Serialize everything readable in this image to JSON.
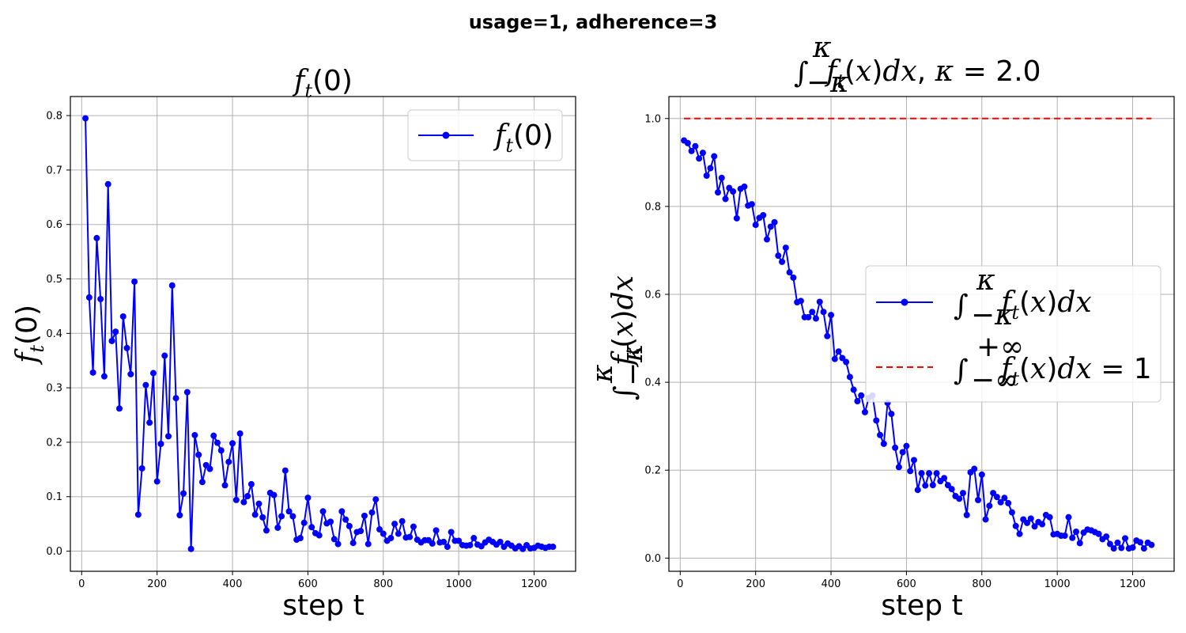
{
  "figure": {
    "suptitle": "usage=1, adherence=3"
  },
  "chart_data": [
    {
      "type": "line",
      "title": "f_t(0)",
      "xlabel": "step t",
      "ylabel": "f_t(0)",
      "xlim": [
        -30,
        1310
      ],
      "ylim": [
        -0.037,
        0.835
      ],
      "xticks": [
        0,
        200,
        400,
        600,
        800,
        1000,
        1200
      ],
      "yticks": [
        0.0,
        0.1,
        0.2,
        0.3,
        0.4,
        0.5,
        0.6,
        0.7,
        0.8
      ],
      "grid": true,
      "legend_position": "upper right",
      "series": [
        {
          "name": "f_t(0)",
          "color": "#0000ff",
          "marker": "circle",
          "x": [
            10,
            20,
            30,
            40,
            50,
            60,
            70,
            80,
            90,
            100,
            110,
            120,
            130,
            140,
            150,
            160,
            170,
            180,
            190,
            200,
            210,
            220,
            230,
            240,
            250,
            260,
            270,
            280,
            290,
            300,
            310,
            320,
            330,
            340,
            350,
            360,
            370,
            380,
            390,
            400,
            410,
            420,
            430,
            440,
            450,
            460,
            470,
            480,
            490,
            500,
            510,
            520,
            530,
            540,
            550,
            560,
            570,
            580,
            590,
            600,
            610,
            620,
            630,
            640,
            650,
            660,
            670,
            680,
            690,
            700,
            710,
            720,
            730,
            740,
            750,
            760,
            770,
            780,
            790,
            800,
            810,
            820,
            830,
            840,
            850,
            860,
            870,
            880,
            890,
            900,
            910,
            920,
            930,
            940,
            950,
            960,
            970,
            980,
            990,
            1000,
            1010,
            1020,
            1030,
            1040,
            1050,
            1060,
            1070,
            1080,
            1090,
            1100,
            1110,
            1120,
            1130,
            1140,
            1150,
            1160,
            1170,
            1180,
            1190,
            1200,
            1210,
            1220,
            1230,
            1240,
            1250
          ],
          "values": [
            0.795,
            0.466,
            0.328,
            0.575,
            0.463,
            0.321,
            0.674,
            0.386,
            0.403,
            0.262,
            0.431,
            0.373,
            0.325,
            0.495,
            0.067,
            0.152,
            0.305,
            0.236,
            0.327,
            0.128,
            0.197,
            0.359,
            0.211,
            0.488,
            0.281,
            0.066,
            0.106,
            0.292,
            0.004,
            0.213,
            0.177,
            0.127,
            0.158,
            0.151,
            0.212,
            0.199,
            0.185,
            0.121,
            0.164,
            0.198,
            0.094,
            0.216,
            0.09,
            0.101,
            0.123,
            0.067,
            0.087,
            0.062,
            0.038,
            0.107,
            0.103,
            0.043,
            0.064,
            0.148,
            0.073,
            0.064,
            0.021,
            0.024,
            0.052,
            0.098,
            0.044,
            0.033,
            0.029,
            0.073,
            0.051,
            0.054,
            0.022,
            0.013,
            0.073,
            0.058,
            0.046,
            0.015,
            0.035,
            0.037,
            0.065,
            0.013,
            0.071,
            0.095,
            0.04,
            0.032,
            0.019,
            0.024,
            0.05,
            0.032,
            0.055,
            0.025,
            0.026,
            0.045,
            0.021,
            0.016,
            0.02,
            0.02,
            0.014,
            0.038,
            0.016,
            0.017,
            0.008,
            0.035,
            0.019,
            0.019,
            0.011,
            0.01,
            0.011,
            0.024,
            0.012,
            0.009,
            0.016,
            0.021,
            0.017,
            0.012,
            0.017,
            0.008,
            0.014,
            0.01,
            0.005,
            0.009,
            0.004,
            0.011,
            0.005,
            0.006,
            0.01,
            0.008,
            0.006,
            0.008,
            0.008
          ]
        }
      ]
    },
    {
      "type": "line",
      "title": "∫_{-κ}^{κ} f_t(x)dx,  κ = 2.0",
      "xlabel": "step t",
      "ylabel": "∫_{-κ}^{κ} f_t(x)dx",
      "xlim": [
        -30,
        1310
      ],
      "ylim": [
        -0.03,
        1.05
      ],
      "xticks": [
        0,
        200,
        400,
        600,
        800,
        1000,
        1200
      ],
      "yticks": [
        0.0,
        0.2,
        0.4,
        0.6,
        0.8,
        1.0
      ],
      "grid": true,
      "legend_position": "center right",
      "series": [
        {
          "name": "∫_{-κ}^{κ} f_t(x)dx",
          "color": "#0000ff",
          "marker": "circle",
          "x": [
            10,
            20,
            30,
            40,
            50,
            60,
            70,
            80,
            90,
            100,
            110,
            120,
            130,
            140,
            150,
            160,
            170,
            180,
            190,
            200,
            210,
            220,
            230,
            240,
            250,
            260,
            270,
            280,
            290,
            300,
            310,
            320,
            330,
            340,
            350,
            360,
            370,
            380,
            390,
            400,
            410,
            420,
            430,
            440,
            450,
            460,
            470,
            480,
            490,
            500,
            510,
            520,
            530,
            540,
            550,
            560,
            570,
            580,
            590,
            600,
            610,
            620,
            630,
            640,
            650,
            660,
            670,
            680,
            690,
            700,
            710,
            720,
            730,
            740,
            750,
            760,
            770,
            780,
            790,
            800,
            810,
            820,
            830,
            840,
            850,
            860,
            870,
            880,
            890,
            900,
            910,
            920,
            930,
            940,
            950,
            960,
            970,
            980,
            990,
            1000,
            1010,
            1020,
            1030,
            1040,
            1050,
            1060,
            1070,
            1080,
            1090,
            1100,
            1110,
            1120,
            1130,
            1140,
            1150,
            1160,
            1170,
            1180,
            1190,
            1200,
            1210,
            1220,
            1230,
            1240,
            1250
          ],
          "values": [
            0.95,
            0.944,
            0.926,
            0.937,
            0.909,
            0.922,
            0.87,
            0.887,
            0.914,
            0.832,
            0.865,
            0.817,
            0.842,
            0.834,
            0.773,
            0.84,
            0.845,
            0.802,
            0.805,
            0.758,
            0.774,
            0.78,
            0.725,
            0.754,
            0.764,
            0.688,
            0.674,
            0.706,
            0.65,
            0.638,
            0.582,
            0.585,
            0.548,
            0.548,
            0.56,
            0.545,
            0.583,
            0.56,
            0.505,
            0.553,
            0.453,
            0.47,
            0.455,
            0.446,
            0.412,
            0.383,
            0.357,
            0.37,
            0.332,
            0.364,
            0.37,
            0.313,
            0.28,
            0.26,
            0.353,
            0.328,
            0.251,
            0.207,
            0.241,
            0.255,
            0.198,
            0.223,
            0.155,
            0.193,
            0.165,
            0.193,
            0.166,
            0.193,
            0.175,
            0.182,
            0.166,
            0.157,
            0.141,
            0.135,
            0.148,
            0.098,
            0.195,
            0.203,
            0.132,
            0.19,
            0.088,
            0.119,
            0.148,
            0.139,
            0.127,
            0.137,
            0.125,
            0.104,
            0.073,
            0.055,
            0.088,
            0.08,
            0.09,
            0.072,
            0.082,
            0.077,
            0.098,
            0.093,
            0.054,
            0.055,
            0.051,
            0.051,
            0.093,
            0.046,
            0.06,
            0.034,
            0.058,
            0.065,
            0.063,
            0.059,
            0.055,
            0.043,
            0.049,
            0.032,
            0.022,
            0.035,
            0.023,
            0.045,
            0.022,
            0.024,
            0.04,
            0.036,
            0.022,
            0.035,
            0.03
          ]
        },
        {
          "name": "∫_{-∞}^{+∞} f_t(x)dx = 1",
          "color": "#ff0000",
          "style": "dashed",
          "x": [
            10,
            1250
          ],
          "values": [
            1.0,
            1.0
          ]
        }
      ]
    }
  ]
}
